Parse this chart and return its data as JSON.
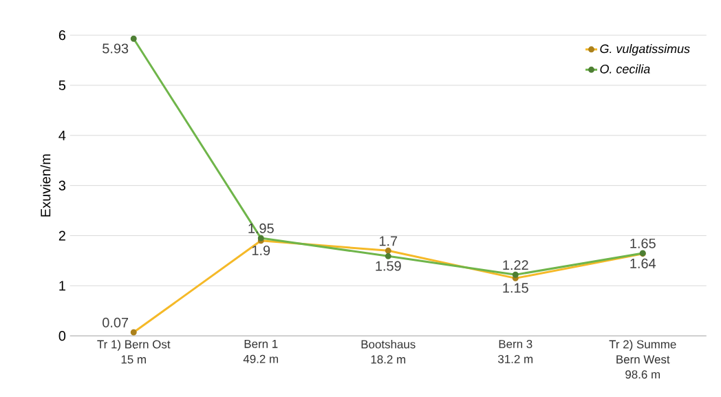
{
  "chart_data": {
    "type": "line",
    "ylabel": "Exuvien/m",
    "categories": [
      "Tr 1) Bern Ost\n15 m",
      "Bern 1\n49.2 m",
      "Bootshaus\n18.2 m",
      "Bern 3\n31.2 m",
      "Tr 2) Summe\nBern West\n98.6 m"
    ],
    "series": [
      {
        "name": "G. vulgatissimus",
        "color": "#f5b928",
        "values": [
          0.07,
          1.9,
          1.7,
          1.15,
          1.64
        ]
      },
      {
        "name": "O. cecilia",
        "color": "#6fb54a",
        "values": [
          5.93,
          1.95,
          1.59,
          1.22,
          1.65
        ]
      }
    ],
    "ylim": [
      0,
      6
    ],
    "yticks": [
      0,
      1,
      2,
      3,
      4,
      5,
      6
    ],
    "grid": "y",
    "legend": "top right",
    "marker": "circle",
    "line_style": "solid",
    "data_labels": true
  }
}
